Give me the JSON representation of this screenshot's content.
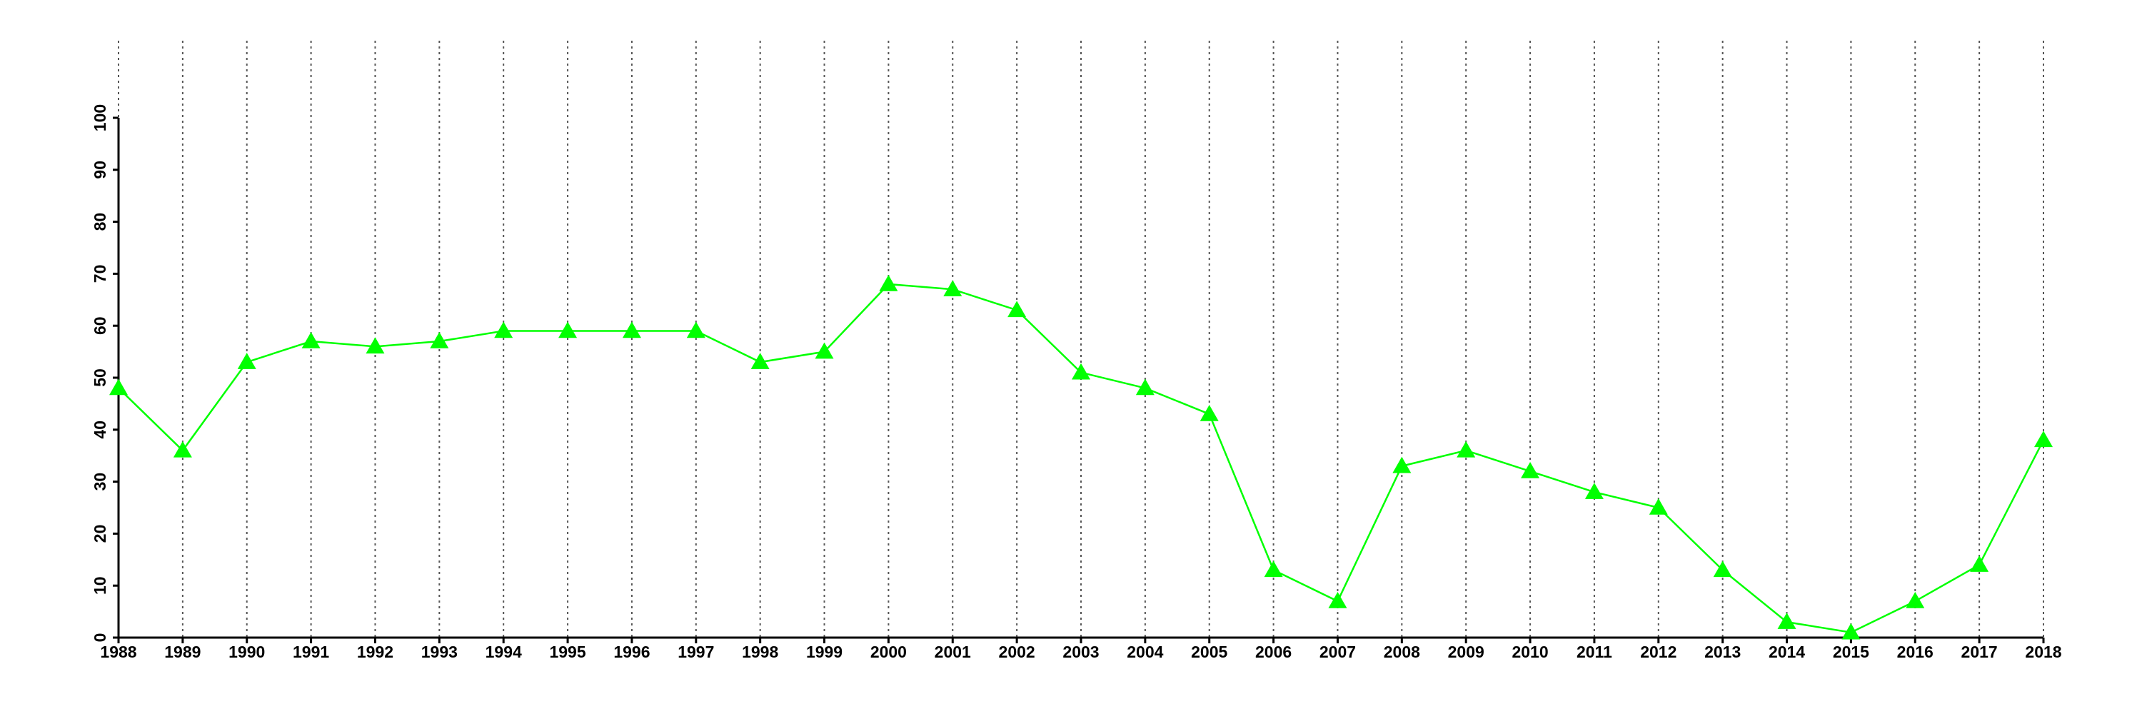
{
  "chart_data": {
    "type": "line",
    "x": [
      1988,
      1989,
      1990,
      1991,
      1992,
      1993,
      1994,
      1995,
      1996,
      1997,
      1998,
      1999,
      2000,
      2001,
      2002,
      2003,
      2004,
      2005,
      2006,
      2007,
      2008,
      2009,
      2010,
      2011,
      2012,
      2013,
      2014,
      2015,
      2016,
      2017,
      2018
    ],
    "values": [
      48,
      36,
      53,
      57,
      56,
      57,
      59,
      59,
      59,
      59,
      53,
      55,
      68,
      67,
      63,
      51,
      48,
      43,
      13,
      7,
      33,
      36,
      32,
      28,
      25,
      13,
      3,
      1,
      7,
      14,
      38
    ],
    "color": "#00ff00",
    "marker": "triangle",
    "xlim": [
      1988,
      2018
    ],
    "xticks": [
      1988,
      1989,
      1990,
      1991,
      1992,
      1993,
      1994,
      1995,
      1996,
      1997,
      1998,
      1999,
      2000,
      2001,
      2002,
      2003,
      2004,
      2005,
      2006,
      2007,
      2008,
      2009,
      2010,
      2011,
      2012,
      2013,
      2014,
      2015,
      2016,
      2017,
      2018
    ],
    "ylim": [
      0,
      100
    ],
    "yticks": [
      0,
      10,
      20,
      30,
      40,
      50,
      60,
      70,
      80,
      90,
      100
    ],
    "grid": true
  }
}
